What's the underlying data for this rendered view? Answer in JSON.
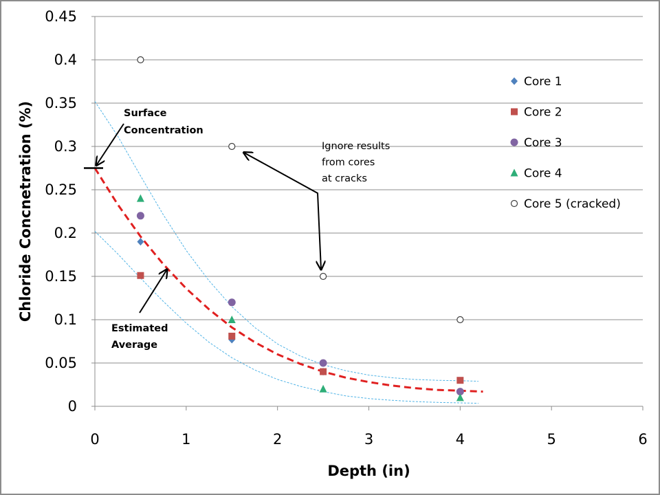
{
  "chart_data": {
    "type": "scatter",
    "xlabel": "Depth (in)",
    "ylabel": "Chloride Concnetration (%)",
    "xlim": [
      0,
      6
    ],
    "ylim": [
      0,
      0.45
    ],
    "x_ticks": [
      "0",
      "1",
      "2",
      "3",
      "4",
      "5",
      "6"
    ],
    "y_ticks": [
      "0",
      "0.05",
      "0.1",
      "0.15",
      "0.2",
      "0.25",
      "0.3",
      "0.35",
      "0.4",
      "0.45"
    ],
    "grid": "horizontal",
    "legend_position": "right",
    "series": [
      {
        "name": "Core 1",
        "marker": "diamond",
        "color": "#4f81bd",
        "points": [
          [
            0.5,
            0.19
          ],
          [
            1.5,
            0.077
          ],
          [
            2.5,
            0.04
          ],
          [
            4,
            0.017
          ]
        ]
      },
      {
        "name": "Core 2",
        "marker": "square",
        "color": "#c0504d",
        "points": [
          [
            0.5,
            0.151
          ],
          [
            1.5,
            0.081
          ],
          [
            2.5,
            0.04
          ],
          [
            4,
            0.03
          ]
        ]
      },
      {
        "name": "Core 3",
        "marker": "circle",
        "color": "#8064a2",
        "points": [
          [
            0.5,
            0.22
          ],
          [
            1.5,
            0.12
          ],
          [
            2.5,
            0.05
          ],
          [
            4,
            0.017
          ]
        ]
      },
      {
        "name": "Core 4",
        "marker": "triangle",
        "color": "#2eae78",
        "points": [
          [
            0.5,
            0.24
          ],
          [
            1.5,
            0.1
          ],
          [
            2.5,
            0.02
          ],
          [
            4,
            0.01
          ]
        ]
      },
      {
        "name": "Core 5 (cracked)",
        "marker": "open-circle",
        "color": "#404040",
        "points": [
          [
            0.5,
            0.4
          ],
          [
            1.5,
            0.3
          ],
          [
            2.5,
            0.15
          ],
          [
            4,
            0.1
          ]
        ]
      }
    ],
    "curves": [
      {
        "style": "red-dashed",
        "color": "#e02020",
        "points": [
          [
            0,
            0.275
          ],
          [
            0.25,
            0.233
          ],
          [
            0.5,
            0.196
          ],
          [
            0.75,
            0.164
          ],
          [
            1,
            0.136
          ],
          [
            1.25,
            0.112
          ],
          [
            1.5,
            0.091
          ],
          [
            1.75,
            0.074
          ],
          [
            2,
            0.06
          ],
          [
            2.25,
            0.049
          ],
          [
            2.5,
            0.04
          ],
          [
            2.75,
            0.033
          ],
          [
            3,
            0.028
          ],
          [
            3.25,
            0.024
          ],
          [
            3.5,
            0.021
          ],
          [
            3.75,
            0.019
          ],
          [
            4,
            0.018
          ],
          [
            4.25,
            0.017
          ]
        ]
      },
      {
        "style": "blue-dashed",
        "color": "#4fb3e6",
        "points": [
          [
            0,
            0.352
          ],
          [
            0.25,
            0.312
          ],
          [
            0.5,
            0.266
          ],
          [
            0.75,
            0.221
          ],
          [
            1,
            0.18
          ],
          [
            1.25,
            0.145
          ],
          [
            1.5,
            0.115
          ],
          [
            1.75,
            0.091
          ],
          [
            2,
            0.072
          ],
          [
            2.25,
            0.058
          ],
          [
            2.5,
            0.048
          ],
          [
            2.75,
            0.041
          ],
          [
            3,
            0.036
          ],
          [
            3.25,
            0.033
          ],
          [
            3.5,
            0.031
          ],
          [
            3.75,
            0.03
          ],
          [
            4,
            0.0295
          ],
          [
            4.2,
            0.029
          ]
        ]
      },
      {
        "style": "blue-dashed",
        "color": "#4fb3e6",
        "points": [
          [
            0,
            0.202
          ],
          [
            0.25,
            0.176
          ],
          [
            0.5,
            0.148
          ],
          [
            0.75,
            0.121
          ],
          [
            1,
            0.096
          ],
          [
            1.25,
            0.074
          ],
          [
            1.5,
            0.056
          ],
          [
            1.75,
            0.042
          ],
          [
            2,
            0.031
          ],
          [
            2.25,
            0.023
          ],
          [
            2.5,
            0.017
          ],
          [
            2.75,
            0.012
          ],
          [
            3,
            0.009
          ],
          [
            3.25,
            0.007
          ],
          [
            3.5,
            0.0055
          ],
          [
            3.75,
            0.0045
          ],
          [
            4,
            0.004
          ],
          [
            4.2,
            0.0035
          ]
        ]
      }
    ],
    "annotations": [
      {
        "id": "surface",
        "lines": [
          "Surface",
          "Concentration"
        ]
      },
      {
        "id": "ignore",
        "lines": [
          "Ignore results",
          "from cores",
          "at cracks"
        ]
      },
      {
        "id": "estimated",
        "lines": [
          "Estimated",
          "Average"
        ]
      }
    ]
  }
}
